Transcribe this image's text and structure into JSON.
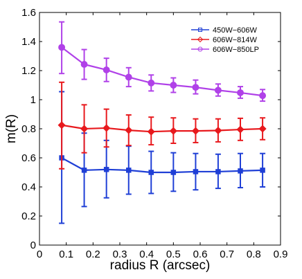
{
  "chart_data": {
    "type": "line",
    "title": "",
    "xlabel": "radius R (arcsec)",
    "ylabel": "m(R)",
    "xlim": [
      0,
      0.9
    ],
    "ylim": [
      0,
      1.6
    ],
    "xticks": [
      0,
      0.1,
      0.2,
      0.3,
      0.4,
      0.5,
      0.6,
      0.7,
      0.8,
      0.9
    ],
    "xtick_labels": [
      "0",
      "0.1",
      "0.2",
      "0.3",
      "0.4",
      "0.5",
      "0.6",
      "0.7",
      "0.8",
      "0.9"
    ],
    "yticks": [
      0,
      0.2,
      0.4,
      0.6,
      0.8,
      1.0,
      1.2,
      1.4,
      1.6
    ],
    "ytick_labels": [
      "0",
      "0.2",
      "0.4",
      "0.6",
      "0.8",
      "1",
      "1.2",
      "1.4",
      "1.6"
    ],
    "grid": false,
    "legend_position": "top-right",
    "x": [
      0.083,
      0.167,
      0.25,
      0.333,
      0.417,
      0.5,
      0.583,
      0.667,
      0.75,
      0.833
    ],
    "series": [
      {
        "name": "450W−606W",
        "color": "#1f3fd6",
        "marker": "square",
        "values": [
          0.6,
          0.515,
          0.52,
          0.515,
          0.5,
          0.5,
          0.505,
          0.505,
          0.51,
          0.515
        ],
        "err_low": [
          0.15,
          0.265,
          0.325,
          0.35,
          0.355,
          0.37,
          0.38,
          0.39,
          0.395,
          0.4
        ],
        "err_high": [
          1.055,
          0.77,
          0.72,
          0.68,
          0.645,
          0.635,
          0.63,
          0.625,
          0.63,
          0.63
        ]
      },
      {
        "name": "606W−814W",
        "color": "#e8191d",
        "marker": "diamond",
        "values": [
          0.825,
          0.8,
          0.805,
          0.79,
          0.78,
          0.785,
          0.785,
          0.788,
          0.795,
          0.8
        ],
        "err_low": [
          0.525,
          0.635,
          0.675,
          0.685,
          0.69,
          0.7,
          0.705,
          0.71,
          0.72,
          0.725
        ],
        "err_high": [
          1.12,
          0.965,
          0.935,
          0.895,
          0.88,
          0.875,
          0.868,
          0.868,
          0.872,
          0.875
        ]
      },
      {
        "name": "606W−850LP",
        "color": "#b041e8",
        "marker": "circle",
        "values": [
          1.36,
          1.243,
          1.205,
          1.155,
          1.115,
          1.1,
          1.085,
          1.065,
          1.048,
          1.028
        ],
        "err_low": [
          1.18,
          1.14,
          1.125,
          1.09,
          1.06,
          1.05,
          1.04,
          1.025,
          1.01,
          0.99
        ],
        "err_high": [
          1.535,
          1.345,
          1.285,
          1.22,
          1.17,
          1.15,
          1.135,
          1.108,
          1.09,
          1.07
        ]
      }
    ]
  }
}
